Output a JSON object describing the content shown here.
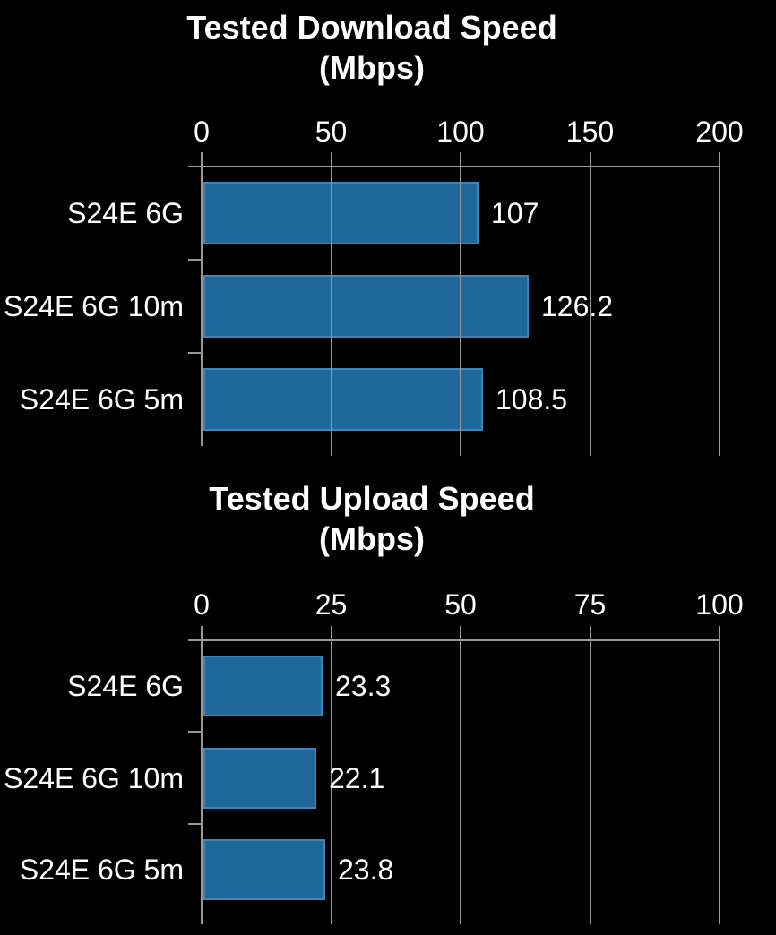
{
  "colors": {
    "background": "#000000",
    "bar_fill": "#1e689b",
    "bar_border": "#3c85b8",
    "line_gray": "#989898",
    "text": "#ffffff"
  },
  "chart_data": [
    {
      "type": "bar",
      "orientation": "horizontal",
      "title": "Tested Download Speed (Mbps)",
      "title_lines": [
        "Tested Download Speed",
        "(Mbps)"
      ],
      "categories": [
        "S24E 6G",
        "S24E 6G 10m",
        "S24E 6G 5m"
      ],
      "values": [
        107,
        126.2,
        108.5
      ],
      "value_labels": [
        "107",
        "126.2",
        "108.5"
      ],
      "xlim": [
        0,
        200
      ],
      "x_ticks": [
        0,
        50,
        100,
        150,
        200
      ],
      "xlabel": "",
      "ylabel": "",
      "grid": true,
      "legend_position": "none",
      "axis_position": "top"
    },
    {
      "type": "bar",
      "orientation": "horizontal",
      "title": "Tested Upload Speed (Mbps)",
      "title_lines": [
        "Tested Upload Speed",
        "(Mbps)"
      ],
      "categories": [
        "S24E 6G",
        "S24E 6G 10m",
        "S24E 6G 5m"
      ],
      "values": [
        23.3,
        22.1,
        23.8
      ],
      "value_labels": [
        "23.3",
        "22.1",
        "23.8"
      ],
      "xlim": [
        0,
        100
      ],
      "x_ticks": [
        0,
        25,
        50,
        75,
        100
      ],
      "xlabel": "",
      "ylabel": "",
      "grid": true,
      "legend_position": "none",
      "axis_position": "top"
    }
  ]
}
